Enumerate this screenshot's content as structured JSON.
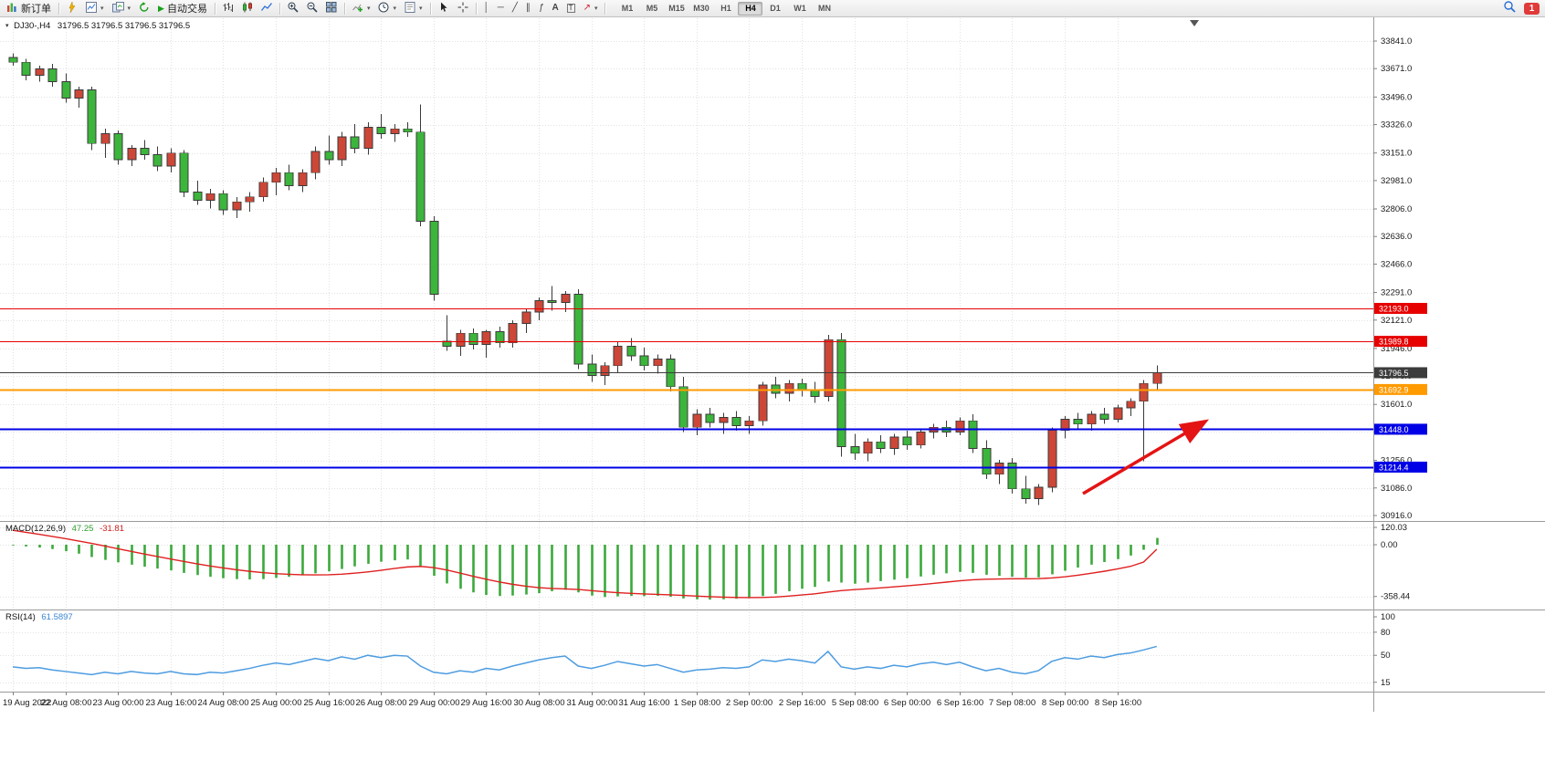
{
  "toolbar": {
    "new_order_label": "新订单",
    "autotrading_label": "自动交易",
    "timeframes": [
      "M1",
      "M5",
      "M15",
      "M30",
      "H1",
      "H4",
      "D1",
      "W1",
      "MN"
    ],
    "active_timeframe": "H4",
    "notification_badge": "1"
  },
  "icons": {
    "new_order": "chart-plus",
    "metaeditor": "lightning",
    "new_chart": "chart-page",
    "profiles": "windows",
    "refresh": "circular-arrows",
    "autotrading_play": "▶",
    "bar_chart": "bars",
    "candlestick": "candle",
    "line_chart": "polyline",
    "zoom_in": "magnifier-plus",
    "zoom_out": "magnifier-minus",
    "tile_windows": "grid",
    "indicators": "plus-chart",
    "periods": "clock",
    "templates": "template-page",
    "cursor": "pointer",
    "crosshair": "cross",
    "vertical_line": "│",
    "horizontal_line": "─",
    "trend_line": "╱",
    "channel": "∥",
    "fibonacci": "ƒ",
    "text": "A",
    "text_label": "T",
    "arrows_tool": "↗",
    "caret": "▾",
    "search": "magnifier"
  },
  "chart": {
    "type": "candlestick",
    "symbol_title": "DJ30-,H4",
    "quote_line": "31796.5 31796.5 31796.5 31796.5",
    "colors": {
      "up": "#cd4738",
      "down": "#3cb53c",
      "wick": "#3a3a3a",
      "grid": "#e2e2e2"
    },
    "price_scale": [
      "33841.0",
      "33671.0",
      "33496.0",
      "33326.0",
      "33151.0",
      "32981.0",
      "32806.0",
      "32636.0",
      "32466.0",
      "32291.0",
      "32121.0",
      "31946.0",
      "31776.0",
      "31601.0",
      "31431.0",
      "31256.0",
      "31086.0",
      "30916.0"
    ],
    "time_labels": [
      "19 Aug 2022",
      "22 Aug 08:00",
      "23 Aug 00:00",
      "23 Aug 16:00",
      "24 Aug 08:00",
      "25 Aug 00:00",
      "25 Aug 16:00",
      "26 Aug 08:00",
      "29 Aug 00:00",
      "29 Aug 16:00",
      "30 Aug 08:00",
      "31 Aug 00:00",
      "31 Aug 16:00",
      "1 Sep 08:00",
      "2 Sep 00:00",
      "2 Sep 16:00",
      "5 Sep 08:00",
      "6 Sep 00:00",
      "6 Sep 16:00",
      "7 Sep 08:00",
      "8 Sep 00:00",
      "8 Sep 16:00"
    ],
    "levels": [
      {
        "label": "32193.0",
        "value": 32193.0,
        "color": "#e60000",
        "width": 1
      },
      {
        "label": "31989.8",
        "value": 31989.8,
        "color": "#e60000",
        "width": 1
      },
      {
        "label": "31796.5",
        "value": 31796.5,
        "color": "#3c3c3c",
        "width": 1
      },
      {
        "label": "31692.9",
        "value": 31692.9,
        "color": "#ff9a00",
        "width": 2
      },
      {
        "label": "31448.0",
        "value": 31448.0,
        "color": "#0000e6",
        "width": 2
      },
      {
        "label": "31214.4",
        "value": 31214.4,
        "color": "#0000e6",
        "width": 2
      }
    ],
    "candles": [
      [
        33740,
        33765,
        33690,
        33710
      ],
      [
        33710,
        33730,
        33600,
        33630
      ],
      [
        33630,
        33690,
        33590,
        33670
      ],
      [
        33670,
        33700,
        33560,
        33590
      ],
      [
        33590,
        33640,
        33460,
        33490
      ],
      [
        33490,
        33560,
        33430,
        33540
      ],
      [
        33540,
        33560,
        33170,
        33210
      ],
      [
        33210,
        33300,
        33120,
        33270
      ],
      [
        33270,
        33290,
        33080,
        33110
      ],
      [
        33110,
        33200,
        33070,
        33180
      ],
      [
        33180,
        33230,
        33110,
        33140
      ],
      [
        33140,
        33190,
        33040,
        33070
      ],
      [
        33070,
        33180,
        33030,
        33150
      ],
      [
        33150,
        33170,
        32880,
        32910
      ],
      [
        32910,
        32980,
        32830,
        32860
      ],
      [
        32860,
        32930,
        32810,
        32900
      ],
      [
        32900,
        32920,
        32770,
        32800
      ],
      [
        32800,
        32880,
        32750,
        32850
      ],
      [
        32850,
        32910,
        32790,
        32880
      ],
      [
        32880,
        33000,
        32850,
        32970
      ],
      [
        32970,
        33060,
        32890,
        33030
      ],
      [
        33030,
        33080,
        32920,
        32950
      ],
      [
        32950,
        33050,
        32910,
        33030
      ],
      [
        33030,
        33190,
        32990,
        33160
      ],
      [
        33160,
        33260,
        33080,
        33110
      ],
      [
        33110,
        33280,
        33070,
        33250
      ],
      [
        33250,
        33330,
        33150,
        33180
      ],
      [
        33180,
        33340,
        33140,
        33310
      ],
      [
        33310,
        33390,
        33240,
        33270
      ],
      [
        33270,
        33330,
        33220,
        33300
      ],
      [
        33300,
        33340,
        33250,
        33280
      ],
      [
        33280,
        33450,
        32700,
        32730
      ],
      [
        32730,
        32760,
        32240,
        32280
      ],
      [
        31990,
        32150,
        31930,
        31960
      ],
      [
        31960,
        32060,
        31900,
        32040
      ],
      [
        32040,
        32070,
        31940,
        31970
      ],
      [
        31970,
        32060,
        31890,
        32050
      ],
      [
        32050,
        32080,
        31950,
        31980
      ],
      [
        31980,
        32120,
        31950,
        32100
      ],
      [
        32100,
        32190,
        32040,
        32170
      ],
      [
        32170,
        32260,
        32120,
        32240
      ],
      [
        32240,
        32330,
        32180,
        32230
      ],
      [
        32230,
        32300,
        32170,
        32280
      ],
      [
        32280,
        32310,
        31820,
        31850
      ],
      [
        31850,
        31910,
        31740,
        31780
      ],
      [
        31780,
        31860,
        31720,
        31840
      ],
      [
        31840,
        31990,
        31800,
        31960
      ],
      [
        31960,
        32010,
        31870,
        31900
      ],
      [
        31900,
        31950,
        31810,
        31840
      ],
      [
        31840,
        31910,
        31790,
        31880
      ],
      [
        31880,
        31910,
        31680,
        31710
      ],
      [
        31710,
        31770,
        31430,
        31460
      ],
      [
        31460,
        31570,
        31410,
        31540
      ],
      [
        31540,
        31580,
        31460,
        31490
      ],
      [
        31490,
        31550,
        31420,
        31520
      ],
      [
        31520,
        31560,
        31440,
        31470
      ],
      [
        31470,
        31530,
        31420,
        31500
      ],
      [
        31500,
        31740,
        31470,
        31720
      ],
      [
        31720,
        31770,
        31640,
        31670
      ],
      [
        31670,
        31750,
        31620,
        31730
      ],
      [
        31730,
        31760,
        31650,
        31690
      ],
      [
        31690,
        31740,
        31610,
        31650
      ],
      [
        31650,
        32030,
        31620,
        32000
      ],
      [
        32000,
        32040,
        31280,
        31340
      ],
      [
        31340,
        31420,
        31260,
        31300
      ],
      [
        31300,
        31390,
        31250,
        31370
      ],
      [
        31370,
        31410,
        31300,
        31330
      ],
      [
        31330,
        31420,
        31290,
        31400
      ],
      [
        31400,
        31440,
        31320,
        31350
      ],
      [
        31350,
        31450,
        31330,
        31430
      ],
      [
        31430,
        31480,
        31390,
        31460
      ],
      [
        31460,
        31500,
        31400,
        31430
      ],
      [
        31430,
        31520,
        31410,
        31500
      ],
      [
        31500,
        31540,
        31300,
        31330
      ],
      [
        31330,
        31380,
        31140,
        31170
      ],
      [
        31170,
        31260,
        31110,
        31240
      ],
      [
        31240,
        31270,
        31050,
        31080
      ],
      [
        31080,
        31160,
        30990,
        31020
      ],
      [
        31020,
        31110,
        30980,
        31090
      ],
      [
        31090,
        31460,
        31060,
        31440
      ],
      [
        31440,
        31530,
        31390,
        31510
      ],
      [
        31510,
        31550,
        31450,
        31480
      ],
      [
        31480,
        31560,
        31440,
        31540
      ],
      [
        31540,
        31580,
        31480,
        31510
      ],
      [
        31510,
        31600,
        31490,
        31580
      ],
      [
        31580,
        31640,
        31530,
        31620
      ],
      [
        31620,
        31750,
        31250,
        31730
      ],
      [
        31730,
        31840,
        31690,
        31796.5
      ]
    ]
  },
  "macd": {
    "label": "MACD(12,26,9)",
    "main_value": "47.25",
    "signal_value": "-31.81",
    "scale": [
      "120.03",
      "0.00",
      "-358.44"
    ],
    "colors": {
      "histogram": "#3aa93a",
      "signal": "#e02020"
    },
    "histogram": [
      -5,
      -12,
      -20,
      -30,
      -45,
      -62,
      -85,
      -105,
      -122,
      -138,
      -152,
      -165,
      -178,
      -195,
      -210,
      -222,
      -232,
      -238,
      -240,
      -238,
      -230,
      -222,
      -212,
      -198,
      -184,
      -168,
      -150,
      -132,
      -118,
      -108,
      -102,
      -150,
      -215,
      -268,
      -305,
      -330,
      -348,
      -355,
      -352,
      -345,
      -335,
      -322,
      -312,
      -330,
      -352,
      -362,
      -358,
      -355,
      -356,
      -354,
      -360,
      -372,
      -378,
      -380,
      -378,
      -374,
      -370,
      -355,
      -340,
      -322,
      -305,
      -292,
      -255,
      -262,
      -270,
      -262,
      -252,
      -242,
      -232,
      -220,
      -208,
      -198,
      -188,
      -195,
      -208,
      -215,
      -222,
      -228,
      -226,
      -205,
      -180,
      -158,
      -138,
      -120,
      -100,
      -75,
      -35,
      47.25
    ],
    "signal": [
      100,
      86,
      72,
      57,
      42,
      26,
      9,
      -9,
      -28,
      -46,
      -64,
      -82,
      -99,
      -116,
      -132,
      -147,
      -161,
      -173,
      -184,
      -193,
      -200,
      -205,
      -208,
      -209,
      -208,
      -204,
      -197,
      -188,
      -177,
      -165,
      -154,
      -150,
      -158,
      -175,
      -196,
      -218,
      -239,
      -258,
      -274,
      -287,
      -297,
      -303,
      -306,
      -310,
      -318,
      -326,
      -332,
      -337,
      -341,
      -344,
      -347,
      -351,
      -356,
      -360,
      -363,
      -365,
      -366,
      -365,
      -362,
      -356,
      -348,
      -340,
      -328,
      -318,
      -311,
      -305,
      -299,
      -292,
      -285,
      -277,
      -268,
      -259,
      -250,
      -243,
      -239,
      -237,
      -236,
      -236,
      -235,
      -230,
      -222,
      -211,
      -198,
      -184,
      -168,
      -150,
      -120,
      -31.81
    ]
  },
  "rsi": {
    "label": "RSI(14)",
    "value": "61.5897",
    "scale": [
      "100",
      "80",
      "50",
      "15"
    ],
    "color": "#4d9ce0",
    "values": [
      35,
      33,
      34,
      31,
      29,
      27,
      25,
      28,
      26,
      29,
      27,
      26,
      29,
      26,
      25,
      28,
      27,
      30,
      33,
      37,
      40,
      38,
      42,
      46,
      43,
      48,
      45,
      50,
      47,
      50,
      49,
      36,
      28,
      26,
      30,
      28,
      33,
      31,
      36,
      40,
      44,
      47,
      49,
      36,
      33,
      37,
      42,
      39,
      36,
      38,
      33,
      28,
      31,
      32,
      34,
      33,
      35,
      44,
      42,
      45,
      43,
      40,
      55,
      35,
      32,
      35,
      33,
      37,
      35,
      39,
      41,
      38,
      41,
      35,
      30,
      33,
      28,
      26,
      30,
      42,
      47,
      45,
      49,
      47,
      51,
      53,
      57,
      61.59
    ],
    "annotation_arrow_color": "#e41414"
  }
}
